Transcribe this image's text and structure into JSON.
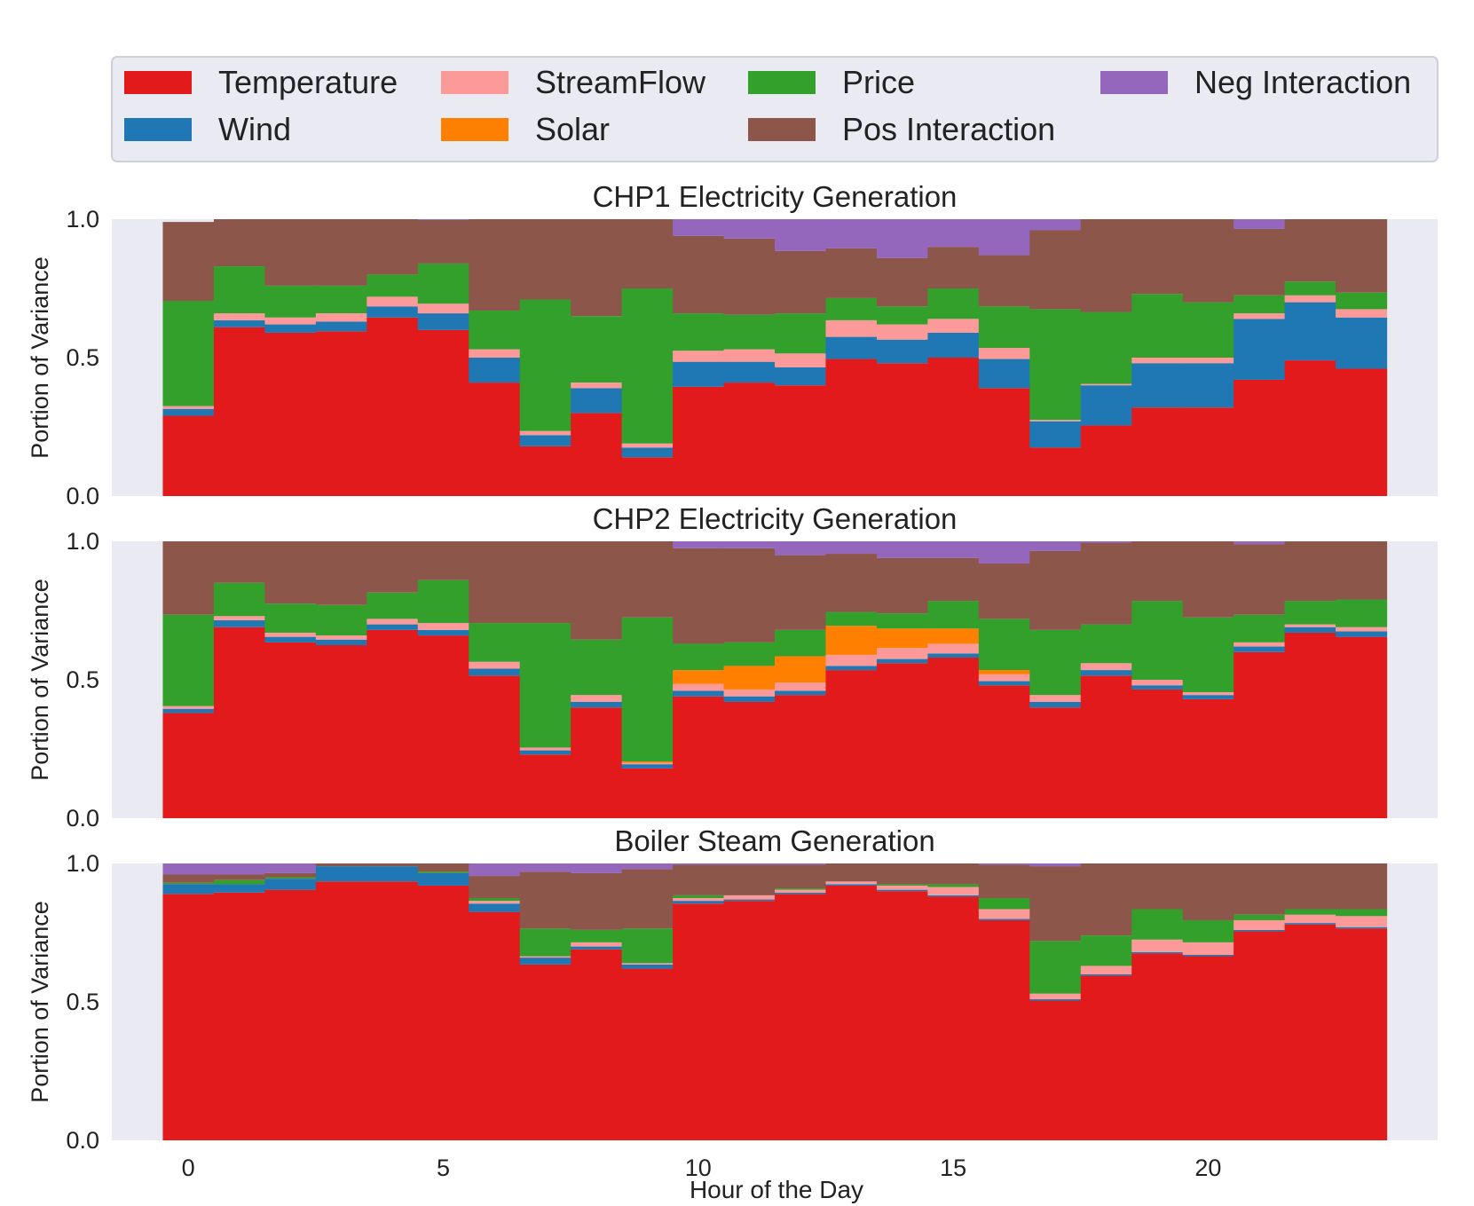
{
  "figure": {
    "xlabel": "Hour of the Day"
  },
  "legend": {
    "placement": "top",
    "entries": [
      {
        "key": "temperature",
        "label": "Temperature",
        "color": "#e31a1c"
      },
      {
        "key": "wind",
        "label": "Wind",
        "color": "#1f78b4"
      },
      {
        "key": "streamflow",
        "label": "StreamFlow",
        "color": "#fb9a99"
      },
      {
        "key": "solar",
        "label": "Solar",
        "color": "#ff7f00"
      },
      {
        "key": "price",
        "label": "Price",
        "color": "#33a02c"
      },
      {
        "key": "pos_interaction",
        "label": "Pos Interaction",
        "color": "#8c564b"
      },
      {
        "key": "neg_interaction",
        "label": "Neg Interaction",
        "color": "#9467bd"
      }
    ]
  },
  "colors": {
    "plot_background": "#eaeaf2"
  },
  "chart_data": [
    {
      "type": "bar",
      "stacked": true,
      "title": "CHP1 Electricity Generation",
      "ylabel": "Portion of Variance",
      "xlabel": "",
      "ylim": [
        0,
        1
      ],
      "xlim": [
        -1.5,
        24.5
      ],
      "yticks": [
        0.0,
        0.5,
        1.0
      ],
      "xticks": [],
      "x": [
        0,
        1,
        2,
        3,
        4,
        5,
        6,
        7,
        8,
        9,
        10,
        11,
        12,
        13,
        14,
        15,
        16,
        17,
        18,
        19,
        20,
        21,
        22,
        23
      ],
      "series": [
        {
          "key": "temperature",
          "values": [
            0.29,
            0.61,
            0.59,
            0.595,
            0.645,
            0.6,
            0.41,
            0.18,
            0.3,
            0.14,
            0.395,
            0.41,
            0.4,
            0.495,
            0.48,
            0.5,
            0.39,
            0.175,
            0.255,
            0.32,
            0.32,
            0.42,
            0.49,
            0.46
          ]
        },
        {
          "key": "wind",
          "values": [
            0.025,
            0.025,
            0.03,
            0.035,
            0.04,
            0.06,
            0.09,
            0.04,
            0.09,
            0.035,
            0.09,
            0.075,
            0.065,
            0.08,
            0.085,
            0.09,
            0.105,
            0.095,
            0.145,
            0.16,
            0.16,
            0.22,
            0.21,
            0.185
          ]
        },
        {
          "key": "streamflow",
          "values": [
            0.01,
            0.025,
            0.025,
            0.03,
            0.035,
            0.035,
            0.03,
            0.015,
            0.02,
            0.015,
            0.04,
            0.045,
            0.05,
            0.06,
            0.055,
            0.05,
            0.04,
            0.005,
            0.005,
            0.02,
            0.02,
            0.02,
            0.025,
            0.03
          ]
        },
        {
          "key": "solar",
          "values": [
            0,
            0,
            0,
            0,
            0,
            0,
            0,
            0,
            0,
            0,
            0,
            0,
            0,
            0,
            0,
            0,
            0,
            0,
            0,
            0,
            0,
            0,
            0,
            0
          ]
        },
        {
          "key": "price",
          "values": [
            0.38,
            0.17,
            0.115,
            0.1,
            0.08,
            0.145,
            0.14,
            0.475,
            0.24,
            0.56,
            0.135,
            0.125,
            0.145,
            0.08,
            0.065,
            0.11,
            0.15,
            0.4,
            0.26,
            0.23,
            0.2,
            0.065,
            0.05,
            0.06
          ]
        },
        {
          "key": "pos_interaction",
          "values": [
            0.285,
            0.17,
            0.24,
            0.24,
            0.2,
            0.157,
            0.33,
            0.29,
            0.35,
            0.25,
            0.28,
            0.275,
            0.225,
            0.18,
            0.175,
            0.15,
            0.185,
            0.285,
            0.335,
            0.27,
            0.3,
            0.24,
            0.225,
            0.265
          ]
        },
        {
          "key": "neg_interaction",
          "values": [
            0,
            0,
            0,
            0,
            0,
            0.003,
            0,
            0,
            0,
            0,
            0.06,
            0.07,
            0.115,
            0.105,
            0.14,
            0.1,
            0.13,
            0.04,
            0,
            0,
            0,
            0.035,
            0,
            0
          ]
        }
      ]
    },
    {
      "type": "bar",
      "stacked": true,
      "title": "CHP2 Electricity Generation",
      "ylabel": "Portion of Variance",
      "xlabel": "",
      "ylim": [
        0,
        1
      ],
      "xlim": [
        -1.5,
        24.5
      ],
      "yticks": [
        0.0,
        0.5,
        1.0
      ],
      "xticks": [],
      "x": [
        0,
        1,
        2,
        3,
        4,
        5,
        6,
        7,
        8,
        9,
        10,
        11,
        12,
        13,
        14,
        15,
        16,
        17,
        18,
        19,
        20,
        21,
        22,
        23
      ],
      "series": [
        {
          "key": "temperature",
          "values": [
            0.38,
            0.69,
            0.635,
            0.625,
            0.68,
            0.66,
            0.515,
            0.23,
            0.4,
            0.18,
            0.44,
            0.42,
            0.445,
            0.535,
            0.56,
            0.58,
            0.48,
            0.4,
            0.515,
            0.465,
            0.43,
            0.6,
            0.67,
            0.655
          ]
        },
        {
          "key": "wind",
          "values": [
            0.015,
            0.025,
            0.02,
            0.02,
            0.02,
            0.02,
            0.025,
            0.015,
            0.02,
            0.015,
            0.02,
            0.02,
            0.015,
            0.015,
            0.015,
            0.015,
            0.015,
            0.02,
            0.02,
            0.015,
            0.015,
            0.02,
            0.02,
            0.02
          ]
        },
        {
          "key": "streamflow",
          "values": [
            0.01,
            0.015,
            0.015,
            0.015,
            0.02,
            0.025,
            0.025,
            0.01,
            0.025,
            0.005,
            0.025,
            0.025,
            0.03,
            0.04,
            0.04,
            0.035,
            0.025,
            0.025,
            0.025,
            0.02,
            0.01,
            0.015,
            0.01,
            0.015
          ]
        },
        {
          "key": "solar",
          "values": [
            0,
            0,
            0,
            0,
            0,
            0,
            0,
            0,
            0,
            0.005,
            0.05,
            0.085,
            0.095,
            0.105,
            0.07,
            0.055,
            0.015,
            0,
            0,
            0,
            0,
            0,
            0,
            0
          ]
        },
        {
          "key": "price",
          "values": [
            0.33,
            0.12,
            0.105,
            0.11,
            0.095,
            0.155,
            0.14,
            0.45,
            0.2,
            0.52,
            0.095,
            0.085,
            0.095,
            0.05,
            0.055,
            0.1,
            0.185,
            0.235,
            0.14,
            0.285,
            0.27,
            0.1,
            0.085,
            0.1
          ]
        },
        {
          "key": "pos_interaction",
          "values": [
            0.265,
            0.15,
            0.225,
            0.23,
            0.185,
            0.14,
            0.295,
            0.295,
            0.355,
            0.275,
            0.345,
            0.34,
            0.27,
            0.21,
            0.2,
            0.155,
            0.2,
            0.285,
            0.295,
            0.215,
            0.275,
            0.255,
            0.215,
            0.21
          ]
        },
        {
          "key": "neg_interaction",
          "values": [
            0,
            0,
            0,
            0,
            0,
            0,
            0,
            0,
            0,
            0,
            0.025,
            0.025,
            0.05,
            0.045,
            0.06,
            0.06,
            0.08,
            0.035,
            0.005,
            0,
            0,
            0.01,
            0,
            0
          ]
        }
      ]
    },
    {
      "type": "bar",
      "stacked": true,
      "title": "Boiler Steam Generation",
      "ylabel": "Portion of Variance",
      "xlabel": "Hour of the Day",
      "ylim": [
        0,
        1
      ],
      "xlim": [
        -1.5,
        24.5
      ],
      "yticks": [
        0.0,
        0.5,
        1.0
      ],
      "xticks": [
        0,
        5,
        10,
        15,
        20
      ],
      "x": [
        0,
        1,
        2,
        3,
        4,
        5,
        6,
        7,
        8,
        9,
        10,
        11,
        12,
        13,
        14,
        15,
        16,
        17,
        18,
        19,
        20,
        21,
        22,
        23
      ],
      "series": [
        {
          "key": "temperature",
          "values": [
            0.89,
            0.895,
            0.905,
            0.935,
            0.935,
            0.92,
            0.825,
            0.635,
            0.69,
            0.62,
            0.855,
            0.865,
            0.89,
            0.92,
            0.9,
            0.88,
            0.795,
            0.505,
            0.595,
            0.675,
            0.665,
            0.755,
            0.78,
            0.765
          ]
        },
        {
          "key": "wind",
          "values": [
            0.035,
            0.03,
            0.04,
            0.055,
            0.055,
            0.045,
            0.03,
            0.025,
            0.01,
            0.015,
            0.01,
            0.005,
            0.005,
            0.005,
            0.005,
            0.005,
            0.005,
            0.005,
            0.005,
            0.005,
            0.005,
            0.005,
            0.005,
            0.005
          ]
        },
        {
          "key": "streamflow",
          "values": [
            0,
            0,
            0,
            0,
            0,
            0,
            0.01,
            0.005,
            0.015,
            0.005,
            0.01,
            0.015,
            0.01,
            0.01,
            0.015,
            0.03,
            0.035,
            0.02,
            0.03,
            0.045,
            0.045,
            0.035,
            0.03,
            0.04
          ]
        },
        {
          "key": "solar",
          "values": [
            0,
            0,
            0,
            0,
            0,
            0,
            0,
            0,
            0,
            0,
            0,
            0,
            0,
            0,
            0,
            0,
            0,
            0,
            0,
            0,
            0,
            0,
            0,
            0
          ]
        },
        {
          "key": "price",
          "values": [
            0.005,
            0.015,
            0.005,
            0,
            0,
            0.005,
            0.01,
            0.1,
            0.045,
            0.125,
            0.01,
            0,
            0.005,
            0,
            0.005,
            0.01,
            0.04,
            0.19,
            0.11,
            0.11,
            0.08,
            0.02,
            0.02,
            0.025
          ]
        },
        {
          "key": "pos_interaction",
          "values": [
            0.03,
            0.02,
            0.015,
            0.01,
            0.01,
            0.03,
            0.08,
            0.205,
            0.205,
            0.215,
            0.11,
            0.11,
            0.085,
            0.065,
            0.075,
            0.075,
            0.12,
            0.27,
            0.26,
            0.165,
            0.205,
            0.185,
            0.165,
            0.165
          ]
        },
        {
          "key": "neg_interaction",
          "values": [
            0.04,
            0.04,
            0.035,
            0,
            0,
            0,
            0.045,
            0.03,
            0.035,
            0.02,
            0.005,
            0.005,
            0.005,
            0,
            0,
            0,
            0.005,
            0.01,
            0,
            0,
            0,
            0,
            0,
            0
          ]
        }
      ]
    }
  ]
}
